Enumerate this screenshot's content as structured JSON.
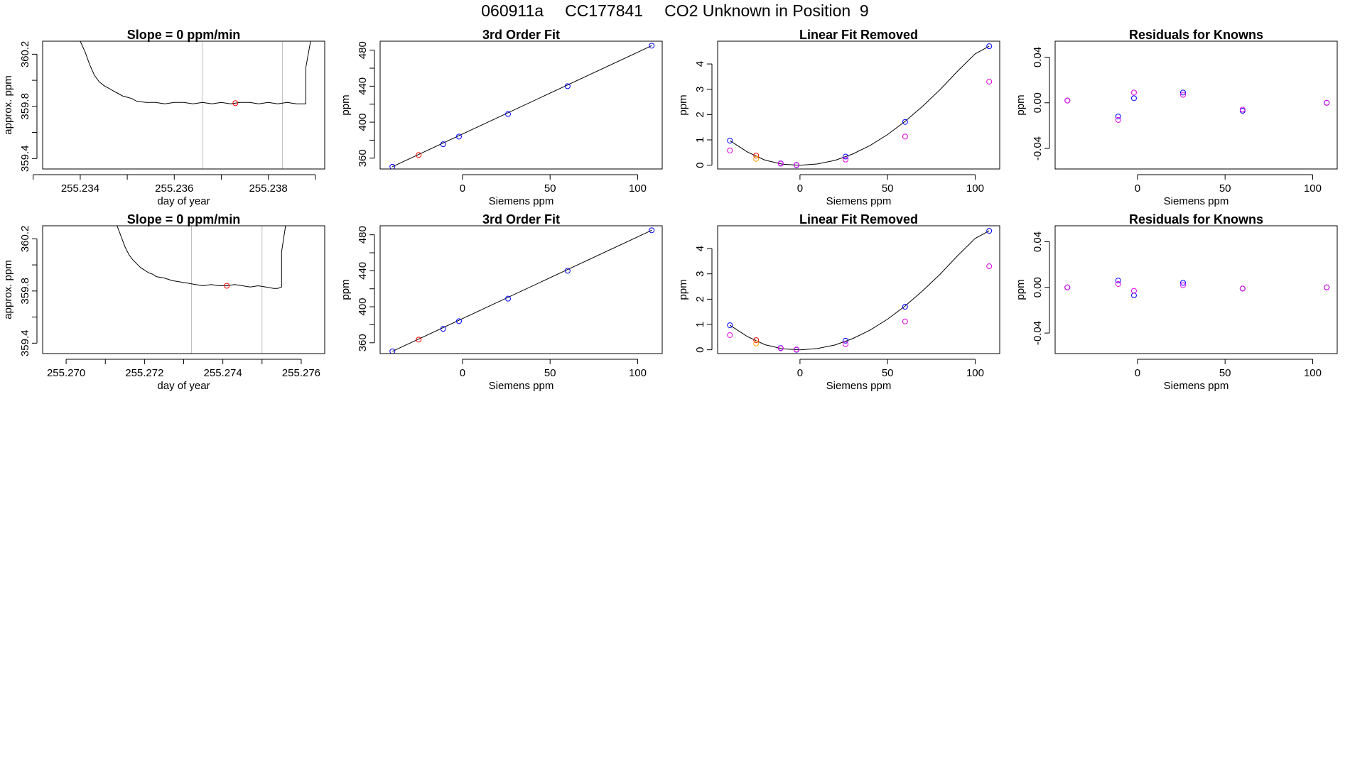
{
  "figure": {
    "title_parts": [
      "060911a",
      "CC177841",
      "CO2 Unknown in Position  9"
    ]
  },
  "colors": {
    "trace": "#000000",
    "fit_line": "#000000",
    "marker_line": "#bfbfbf",
    "axis": "#000000",
    "blue": "#0000ff",
    "red": "#ff0000",
    "magenta": "#e000e0",
    "orange": "#ffa500",
    "purple": "#8000ff"
  },
  "chart_data": [
    {
      "type": "line",
      "title": "Slope =  0  ppm/min",
      "xlabel": "day of year",
      "ylabel": "approx. ppm",
      "xlim": [
        255.2332,
        255.2392
      ],
      "ylim": [
        359.32,
        360.3
      ],
      "xticks": [
        255.233,
        255.234,
        255.235,
        255.236,
        255.237,
        255.238,
        255.239
      ],
      "xtick_labels": [
        "",
        "255.234",
        "",
        "255.236",
        "",
        "255.238",
        ""
      ],
      "yticks": [
        359.4,
        359.6,
        359.8,
        360.0,
        360.2
      ],
      "ytick_labels": [
        "359.4",
        "",
        "359.8",
        "",
        "360.2"
      ],
      "vlines": [
        255.2366,
        255.2383
      ],
      "trace": {
        "x": [
          255.234,
          255.2341,
          255.2342,
          255.2343,
          255.2344,
          255.2345,
          255.2346,
          255.2347,
          255.2348,
          255.2349,
          255.235,
          255.2351,
          255.2352,
          255.2354,
          255.2356,
          255.2358,
          255.236,
          255.2362,
          255.2364,
          255.2366,
          255.2368,
          255.237,
          255.2372,
          255.2374,
          255.2376,
          255.2378,
          255.238,
          255.2382,
          255.2384,
          255.2386,
          255.2387,
          255.2388,
          255.2388,
          255.2389
        ],
        "y": [
          360.3,
          360.22,
          360.12,
          360.04,
          359.99,
          359.96,
          359.94,
          359.92,
          359.9,
          359.88,
          359.87,
          359.86,
          359.84,
          359.83,
          359.83,
          359.82,
          359.83,
          359.83,
          359.82,
          359.83,
          359.82,
          359.83,
          359.82,
          359.83,
          359.83,
          359.82,
          359.83,
          359.82,
          359.83,
          359.82,
          359.82,
          359.82,
          360.1,
          360.3
        ]
      },
      "points": [
        {
          "x": 255.2373,
          "y": 359.825,
          "color": "red"
        }
      ]
    },
    {
      "type": "scatter",
      "title": "3rd Order Fit",
      "xlabel": "Siemens ppm",
      "ylabel": "ppm",
      "xlim": [
        -47,
        114
      ],
      "ylim": [
        348,
        490
      ],
      "xticks": [
        0,
        50,
        100
      ],
      "xtick_labels": [
        "0",
        "50",
        "100"
      ],
      "yticks": [
        360,
        380,
        400,
        420,
        440,
        460,
        480
      ],
      "ytick_labels": [
        "360",
        "",
        "400",
        "",
        "440",
        "",
        "480"
      ],
      "fit_line": {
        "x": [
          -40,
          108
        ],
        "y": [
          350.5,
          485
        ]
      },
      "points": [
        {
          "x": -40,
          "y": 350.5,
          "color": "blue"
        },
        {
          "x": -25,
          "y": 363.5,
          "color": "red"
        },
        {
          "x": -11,
          "y": 375.5,
          "color": "blue"
        },
        {
          "x": -2,
          "y": 384,
          "color": "blue"
        },
        {
          "x": 26,
          "y": 409,
          "color": "blue"
        },
        {
          "x": 60,
          "y": 440,
          "color": "blue"
        },
        {
          "x": 108,
          "y": 485,
          "color": "blue"
        }
      ]
    },
    {
      "type": "scatter",
      "title": "Linear Fit Removed",
      "xlabel": "Siemens ppm",
      "ylabel": "ppm",
      "xlim": [
        -47,
        114
      ],
      "ylim": [
        -0.15,
        4.9
      ],
      "xticks": [
        0,
        50,
        100
      ],
      "xtick_labels": [
        "0",
        "50",
        "100"
      ],
      "yticks": [
        0,
        1,
        2,
        3,
        4
      ],
      "ytick_labels": [
        "0",
        "1",
        "2",
        "3",
        "4"
      ],
      "fit_curve": {
        "x": [
          -40,
          -30,
          -20,
          -10,
          0,
          10,
          20,
          30,
          40,
          50,
          60,
          70,
          80,
          90,
          100,
          108
        ],
        "y": [
          0.97,
          0.52,
          0.2,
          0.04,
          0.0,
          0.05,
          0.19,
          0.44,
          0.78,
          1.21,
          1.73,
          2.33,
          2.99,
          3.72,
          4.4,
          4.7
        ]
      },
      "points": [
        {
          "x": -40,
          "y": 0.97,
          "color": "blue"
        },
        {
          "x": -40,
          "y": 0.58,
          "color": "magenta"
        },
        {
          "x": -25,
          "y": 0.38,
          "color": "red"
        },
        {
          "x": -25,
          "y": 0.25,
          "color": "orange"
        },
        {
          "x": -11,
          "y": 0.07,
          "color": "blue"
        },
        {
          "x": -11,
          "y": 0.06,
          "color": "magenta"
        },
        {
          "x": -2,
          "y": 0.0,
          "color": "blue"
        },
        {
          "x": -2,
          "y": 0.01,
          "color": "magenta"
        },
        {
          "x": 26,
          "y": 0.34,
          "color": "blue"
        },
        {
          "x": 26,
          "y": 0.22,
          "color": "magenta"
        },
        {
          "x": 60,
          "y": 1.71,
          "color": "blue"
        },
        {
          "x": 60,
          "y": 1.13,
          "color": "magenta"
        },
        {
          "x": 108,
          "y": 4.7,
          "color": "blue"
        },
        {
          "x": 108,
          "y": 3.3,
          "color": "magenta"
        }
      ]
    },
    {
      "type": "scatter",
      "title": "Residuals for Knowns",
      "xlabel": "Siemens ppm",
      "ylabel": "ppm",
      "xlim": [
        -47,
        114
      ],
      "ylim": [
        -0.058,
        0.054
      ],
      "xticks": [
        0,
        50,
        100
      ],
      "xtick_labels": [
        "0",
        "50",
        "100"
      ],
      "yticks": [
        -0.04,
        0.0,
        0.04
      ],
      "ytick_labels": [
        "-0.04",
        "0.00",
        "0.04"
      ],
      "points": [
        {
          "x": -40,
          "y": 0.002,
          "color": "blue"
        },
        {
          "x": -40,
          "y": 0.002,
          "color": "magenta"
        },
        {
          "x": -11,
          "y": -0.012,
          "color": "blue"
        },
        {
          "x": -11,
          "y": -0.015,
          "color": "magenta"
        },
        {
          "x": -2,
          "y": 0.004,
          "color": "blue"
        },
        {
          "x": -2,
          "y": 0.009,
          "color": "magenta"
        },
        {
          "x": 26,
          "y": 0.009,
          "color": "blue"
        },
        {
          "x": 26,
          "y": 0.007,
          "color": "magenta"
        },
        {
          "x": 60,
          "y": -0.007,
          "color": "blue"
        },
        {
          "x": 60,
          "y": -0.006,
          "color": "magenta"
        },
        {
          "x": 108,
          "y": 0.0,
          "color": "blue"
        },
        {
          "x": 108,
          "y": 0.0,
          "color": "magenta"
        }
      ]
    },
    {
      "type": "line",
      "title": "Slope =  0  ppm/min",
      "xlabel": "day of year",
      "ylabel": "approx. ppm",
      "xlim": [
        255.2694,
        255.2766
      ],
      "ylim": [
        359.32,
        360.3
      ],
      "xticks": [
        255.27,
        255.271,
        255.272,
        255.273,
        255.274,
        255.275,
        255.276
      ],
      "xtick_labels": [
        "255.270",
        "",
        "255.272",
        "",
        "255.274",
        "",
        "255.276"
      ],
      "yticks": [
        359.4,
        359.6,
        359.8,
        360.0,
        360.2
      ],
      "ytick_labels": [
        "359.4",
        "",
        "359.8",
        "",
        "360.2"
      ],
      "vlines": [
        255.2732,
        255.275
      ],
      "trace": {
        "x": [
          255.2713,
          255.2714,
          255.2715,
          255.2716,
          255.2717,
          255.2718,
          255.2719,
          255.272,
          255.2721,
          255.2722,
          255.2723,
          255.2725,
          255.2727,
          255.2729,
          255.2731,
          255.2733,
          255.2735,
          255.2737,
          255.2739,
          255.2741,
          255.2743,
          255.2745,
          255.2747,
          255.2749,
          255.2751,
          255.2753,
          255.2754,
          255.2755,
          255.2755,
          255.2756
        ],
        "y": [
          360.3,
          360.22,
          360.14,
          360.08,
          360.04,
          360.01,
          359.98,
          359.96,
          359.94,
          359.93,
          359.91,
          359.9,
          359.88,
          359.87,
          359.86,
          359.85,
          359.84,
          359.85,
          359.84,
          359.84,
          359.85,
          359.84,
          359.83,
          359.84,
          359.83,
          359.82,
          359.82,
          359.83,
          360.1,
          360.3
        ]
      },
      "points": [
        {
          "x": 255.2741,
          "y": 359.84,
          "color": "red"
        }
      ]
    },
    {
      "type": "scatter",
      "title": "3rd Order Fit",
      "xlabel": "Siemens ppm",
      "ylabel": "ppm",
      "xlim": [
        -47,
        114
      ],
      "ylim": [
        348,
        490
      ],
      "xticks": [
        0,
        50,
        100
      ],
      "xtick_labels": [
        "0",
        "50",
        "100"
      ],
      "yticks": [
        360,
        380,
        400,
        420,
        440,
        460,
        480
      ],
      "ytick_labels": [
        "360",
        "",
        "400",
        "",
        "440",
        "",
        "480"
      ],
      "fit_line": {
        "x": [
          -40,
          108
        ],
        "y": [
          350.5,
          485
        ]
      },
      "points": [
        {
          "x": -40,
          "y": 350.5,
          "color": "blue"
        },
        {
          "x": -25,
          "y": 363.5,
          "color": "red"
        },
        {
          "x": -11,
          "y": 375.5,
          "color": "blue"
        },
        {
          "x": -2,
          "y": 384,
          "color": "blue"
        },
        {
          "x": 26,
          "y": 409,
          "color": "blue"
        },
        {
          "x": 60,
          "y": 440,
          "color": "blue"
        },
        {
          "x": 108,
          "y": 485,
          "color": "blue"
        }
      ]
    },
    {
      "type": "scatter",
      "title": "Linear Fit Removed",
      "xlabel": "Siemens ppm",
      "ylabel": "ppm",
      "xlim": [
        -47,
        114
      ],
      "ylim": [
        -0.15,
        4.9
      ],
      "xticks": [
        0,
        50,
        100
      ],
      "xtick_labels": [
        "0",
        "50",
        "100"
      ],
      "yticks": [
        0,
        1,
        2,
        3,
        4
      ],
      "ytick_labels": [
        "0",
        "1",
        "2",
        "3",
        "4"
      ],
      "fit_curve": {
        "x": [
          -40,
          -30,
          -20,
          -10,
          0,
          10,
          20,
          30,
          40,
          50,
          60,
          70,
          80,
          90,
          100,
          108
        ],
        "y": [
          0.97,
          0.52,
          0.2,
          0.04,
          0.0,
          0.05,
          0.19,
          0.44,
          0.78,
          1.21,
          1.73,
          2.33,
          2.99,
          3.72,
          4.4,
          4.7
        ]
      },
      "points": [
        {
          "x": -40,
          "y": 0.97,
          "color": "blue"
        },
        {
          "x": -40,
          "y": 0.58,
          "color": "magenta"
        },
        {
          "x": -25,
          "y": 0.38,
          "color": "red"
        },
        {
          "x": -25,
          "y": 0.25,
          "color": "orange"
        },
        {
          "x": -11,
          "y": 0.07,
          "color": "blue"
        },
        {
          "x": -11,
          "y": 0.06,
          "color": "magenta"
        },
        {
          "x": -2,
          "y": 0.0,
          "color": "blue"
        },
        {
          "x": -2,
          "y": 0.01,
          "color": "magenta"
        },
        {
          "x": 26,
          "y": 0.36,
          "color": "blue"
        },
        {
          "x": 26,
          "y": 0.22,
          "color": "magenta"
        },
        {
          "x": 60,
          "y": 1.7,
          "color": "blue"
        },
        {
          "x": 60,
          "y": 1.12,
          "color": "magenta"
        },
        {
          "x": 108,
          "y": 4.7,
          "color": "blue"
        },
        {
          "x": 108,
          "y": 3.3,
          "color": "magenta"
        }
      ]
    },
    {
      "type": "scatter",
      "title": "Residuals for Knowns",
      "xlabel": "Siemens ppm",
      "ylabel": "ppm",
      "xlim": [
        -47,
        114
      ],
      "ylim": [
        -0.058,
        0.054
      ],
      "xticks": [
        0,
        50,
        100
      ],
      "xtick_labels": [
        "0",
        "50",
        "100"
      ],
      "yticks": [
        -0.04,
        0.0,
        0.04
      ],
      "ytick_labels": [
        "-0.04",
        "0.00",
        "0.04"
      ],
      "points": [
        {
          "x": -40,
          "y": 0.0,
          "color": "blue"
        },
        {
          "x": -40,
          "y": 0.0,
          "color": "magenta"
        },
        {
          "x": -11,
          "y": 0.006,
          "color": "blue"
        },
        {
          "x": -11,
          "y": 0.003,
          "color": "magenta"
        },
        {
          "x": -2,
          "y": -0.007,
          "color": "blue"
        },
        {
          "x": -2,
          "y": -0.003,
          "color": "magenta"
        },
        {
          "x": 26,
          "y": 0.004,
          "color": "blue"
        },
        {
          "x": 26,
          "y": 0.002,
          "color": "magenta"
        },
        {
          "x": 60,
          "y": -0.001,
          "color": "blue"
        },
        {
          "x": 60,
          "y": -0.001,
          "color": "magenta"
        },
        {
          "x": 108,
          "y": 0.0,
          "color": "blue"
        },
        {
          "x": 108,
          "y": 0.0,
          "color": "magenta"
        }
      ]
    }
  ]
}
